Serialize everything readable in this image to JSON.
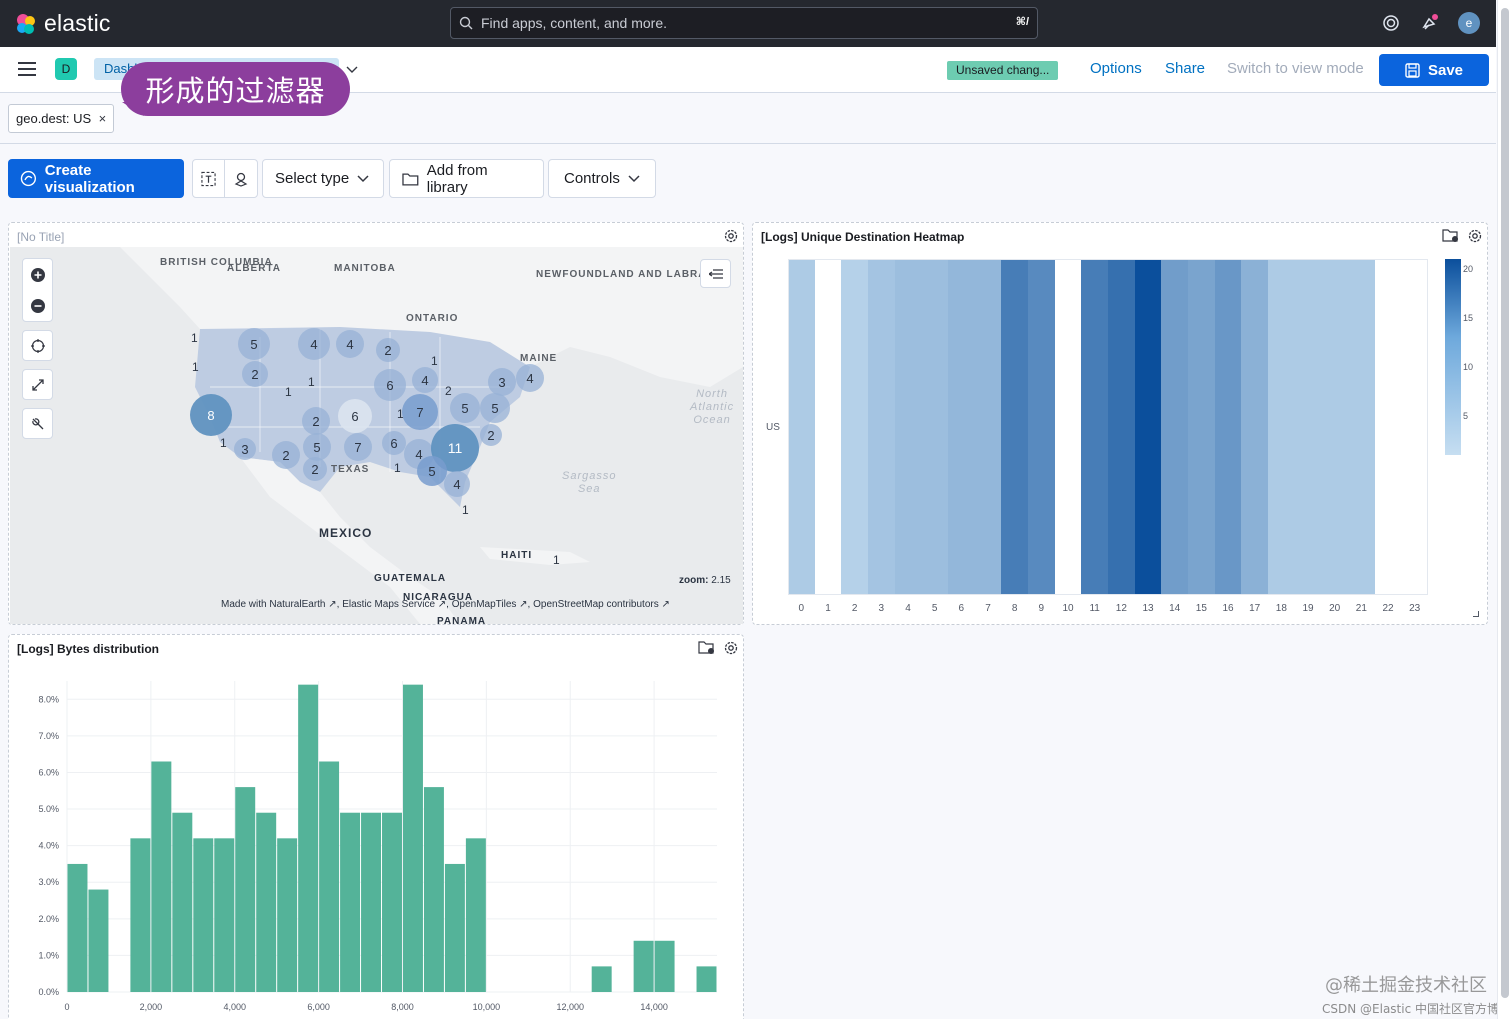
{
  "header": {
    "app_name": "elastic",
    "search_placeholder": "Find apps, content, and more.",
    "search_shortcut": "⌘/",
    "avatar_initial": "e"
  },
  "subbar": {
    "app_badge": "D",
    "breadcrumb": "Dashboards",
    "unsaved_badge": "Unsaved chang...",
    "options": "Options",
    "share": "Share",
    "switch_mode": "Switch to view mode",
    "save": "Save"
  },
  "callout": "形成的过滤器",
  "filter": {
    "label": "geo.dest: US"
  },
  "toolbar": {
    "create_visualization": "Create visualization",
    "select_type": "Select type",
    "add_from_library": "Add from library",
    "controls": "Controls"
  },
  "map_panel": {
    "title": "[No Title]",
    "labels": {
      "british_columbia": "BRITISH\nCOLUMBIA",
      "alberta": "ALBERTA",
      "manitoba": "MANITOBA",
      "newfoundland": "NEWFOUNDLAND\nAND LABRADOR",
      "ontario": "ONTARIO",
      "maine": "MAINE",
      "texas": "TEXAS",
      "mexico": "MEXICO",
      "haiti": "HAITI",
      "guatemala": "GUATEMALA",
      "nicaragua": "NICARAGUA",
      "panama": "PANAMA",
      "north_atlantic": "North\nAtlantic\nOcean",
      "sargasso": "Sargasso\nSea"
    },
    "zoom_label": "zoom:",
    "zoom_value": "2.15",
    "attribution": "Made with NaturalEarth ↗, Elastic Maps Service ↗, OpenMapTiles ↗, OpenStreetMap contributors ↗",
    "clusters": [
      {
        "count": "5"
      },
      {
        "count": "4"
      },
      {
        "count": "4"
      },
      {
        "count": "2"
      },
      {
        "count": "1"
      },
      {
        "count": "2"
      },
      {
        "count": "1"
      },
      {
        "count": "6"
      },
      {
        "count": "4"
      },
      {
        "count": "2"
      },
      {
        "count": "3"
      },
      {
        "count": "4"
      },
      {
        "count": "8"
      },
      {
        "count": "2"
      },
      {
        "count": "6"
      },
      {
        "count": "1"
      },
      {
        "count": "7"
      },
      {
        "count": "5"
      },
      {
        "count": "5"
      },
      {
        "count": "5"
      },
      {
        "count": "7"
      },
      {
        "count": "6"
      },
      {
        "count": "4"
      },
      {
        "count": "11"
      },
      {
        "count": "2"
      },
      {
        "count": "3"
      },
      {
        "count": "2"
      },
      {
        "count": "2"
      },
      {
        "count": "1"
      },
      {
        "count": "5"
      },
      {
        "count": "4"
      },
      {
        "count": "1"
      },
      {
        "count": "1"
      },
      {
        "count": "1"
      },
      {
        "count": "1"
      },
      {
        "count": "1"
      },
      {
        "count": "1"
      },
      {
        "count": "1"
      }
    ]
  },
  "heatmap_panel": {
    "title": "[Logs] Unique Destination Heatmap",
    "row_label": "US",
    "chart_data": {
      "type": "heatmap",
      "title": "[Logs] Unique Destination Heatmap",
      "x": [
        "0",
        "1",
        "2",
        "3",
        "4",
        "5",
        "6",
        "7",
        "8",
        "9",
        "10",
        "11",
        "12",
        "13",
        "14",
        "15",
        "16",
        "17",
        "18",
        "19",
        "20",
        "21",
        "22",
        "23"
      ],
      "y": [
        "US"
      ],
      "values": [
        [
          3,
          0,
          2,
          4,
          5,
          5,
          6,
          6,
          15,
          13,
          0,
          15,
          17,
          22,
          10,
          9,
          11,
          7,
          3,
          3,
          3,
          3,
          0,
          0
        ]
      ],
      "legend_ticks": [
        "20",
        "15",
        "10",
        "5"
      ],
      "colors": [
        "#c6def1",
        "#0b4f9c"
      ]
    }
  },
  "bytes_panel": {
    "title": "[Logs] Bytes distribution",
    "chart_data": {
      "type": "bar",
      "title": "[Logs] Bytes distribution",
      "xlabel": "",
      "ylabel": "",
      "bin_width": 500,
      "x": [
        0,
        500,
        1000,
        1500,
        2000,
        2500,
        3000,
        3500,
        4000,
        4500,
        5000,
        5500,
        6000,
        6500,
        7000,
        7500,
        8000,
        8500,
        9000,
        9500,
        10000,
        10500,
        11000,
        11500,
        12000,
        12500,
        13000,
        13500,
        14000,
        14500,
        15000
      ],
      "values": [
        3.5,
        2.8,
        0,
        4.2,
        6.3,
        4.9,
        4.2,
        4.2,
        5.6,
        4.9,
        4.2,
        8.4,
        6.3,
        4.9,
        4.9,
        4.9,
        8.4,
        5.6,
        3.5,
        4.2,
        0,
        0,
        0,
        0,
        0,
        0.7,
        0,
        1.4,
        1.4,
        0,
        0.7
      ],
      "ylim": [
        0,
        8.5
      ],
      "yticks": [
        "0.0%",
        "1.0%",
        "2.0%",
        "3.0%",
        "4.0%",
        "5.0%",
        "6.0%",
        "7.0%",
        "8.0%"
      ],
      "xticks": [
        "0",
        "2,000",
        "4,000",
        "6,000",
        "8,000",
        "10,000",
        "12,000",
        "14,000"
      ],
      "xlim": [
        0,
        15500
      ],
      "color": "#54b399"
    }
  },
  "watermark": {
    "line1": "@稀土掘金技术社区",
    "line2": "CSDN @Elastic 中国社区官方博客"
  }
}
